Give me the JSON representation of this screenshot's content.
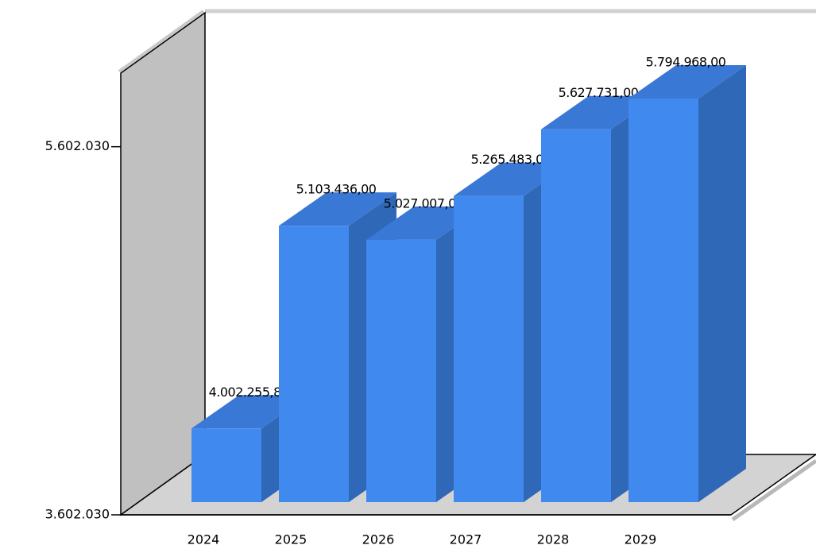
{
  "chart_data": {
    "type": "bar3d",
    "categories": [
      "2024",
      "2025",
      "2026",
      "2027",
      "2028",
      "2029"
    ],
    "values": [
      4002255.8,
      5103436,
      5027007,
      5265483,
      5627731,
      5794968
    ],
    "value_labels": [
      "4.002.255,80",
      "5.103.436,00",
      "5.027.007,00",
      "5.265.483,00",
      "5.627.731,00",
      "5.794.968,00"
    ],
    "color": "#4089ee",
    "ylim": [
      3602030,
      6002030
    ],
    "yticks": [
      {
        "value": 3602030,
        "label": "3.602.030"
      },
      {
        "value": 5602030,
        "label": "5.602.030"
      }
    ]
  }
}
